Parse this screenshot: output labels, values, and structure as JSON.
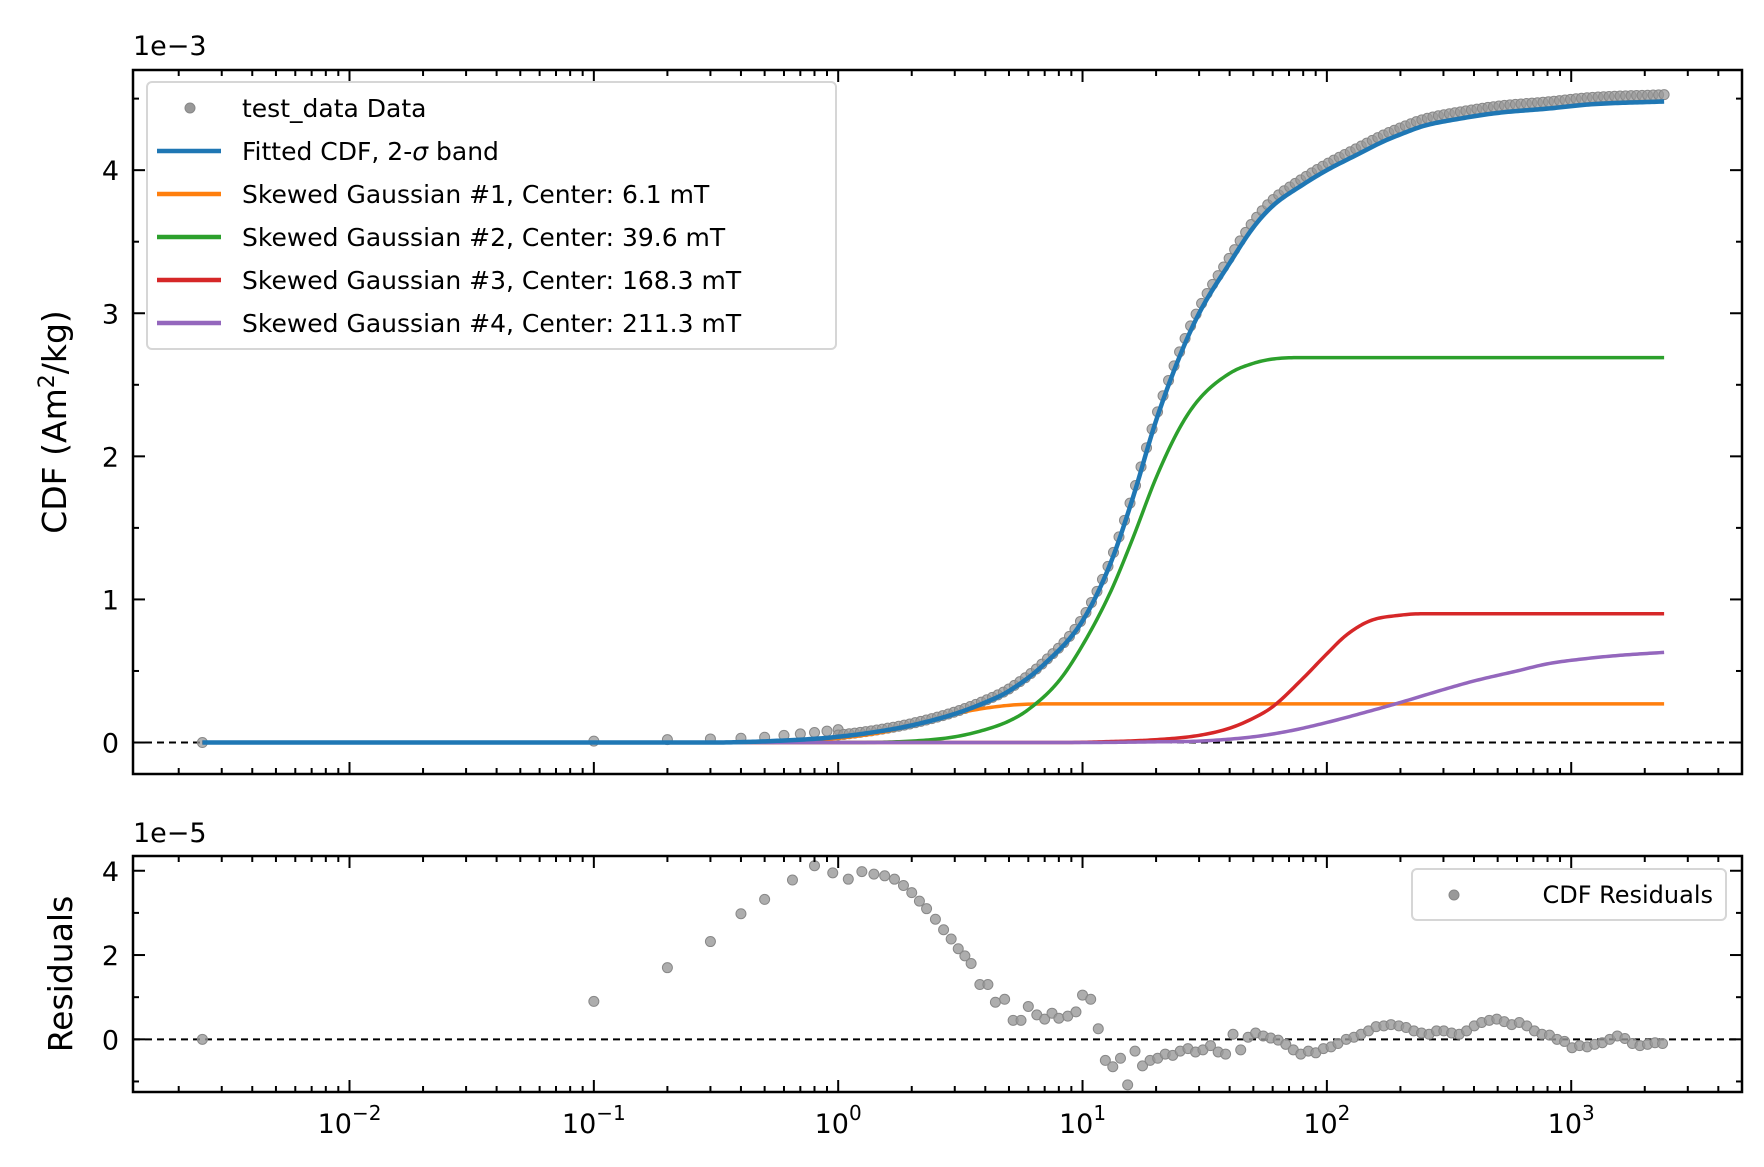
{
  "chart_data": [
    {
      "type": "line",
      "name": "cdf-panel",
      "x_scale": "log",
      "xlim": [
        0.0013,
        5000
      ],
      "ylim": [
        -0.00022,
        0.0047
      ],
      "ylabel_text": "CDF (Am",
      "ylabel_sup": "2",
      "ylabel_tail": "/kg)",
      "offset_text": "1e−3",
      "yticks": [
        {
          "value": 0,
          "label": "0"
        },
        {
          "value": 0.001,
          "label": "1"
        },
        {
          "value": 0.002,
          "label": "2"
        },
        {
          "value": 0.003,
          "label": "3"
        },
        {
          "value": 0.004,
          "label": "4"
        }
      ],
      "legend": {
        "position": "upper-left",
        "entries": [
          {
            "kind": "marker",
            "label": "test_data Data",
            "color": "#999999"
          },
          {
            "kind": "line",
            "label_pre": "Fitted CDF, 2-",
            "label_sigma": "σ",
            "label_post": " band",
            "color": "#1f77b4"
          },
          {
            "kind": "line",
            "label": "Skewed Gaussian #1, Center: 6.1 mT",
            "color": "#ff7f0e"
          },
          {
            "kind": "line",
            "label": "Skewed Gaussian #2, Center: 39.6 mT",
            "color": "#2ca02c"
          },
          {
            "kind": "line",
            "label": "Skewed Gaussian #3, Center: 168.3 mT",
            "color": "#d62728"
          },
          {
            "kind": "line",
            "label": "Skewed Gaussian #4, Center: 211.3 mT",
            "color": "#9467bd"
          }
        ]
      },
      "data": {
        "name": "test_data Data",
        "color": "#999999",
        "x": [
          0.0025,
          0.1,
          0.2,
          0.3,
          0.4,
          0.5,
          0.6,
          0.7,
          0.8,
          0.9,
          1.0,
          2.5,
          2400
        ],
        "y": [
          0.0,
          1e-05,
          2e-05,
          2.5e-05,
          3e-05,
          3.7e-05,
          5e-05,
          6e-05,
          7e-05,
          8e-05,
          9e-05,
          0.0002,
          0.0045
        ]
      },
      "series": [
        {
          "name": "Fitted CDF, 2-σ band",
          "color": "#1f77b4",
          "width": 4.5,
          "x": [
            0.0025,
            0.3,
            0.7,
            1.0,
            1.5,
            2.0,
            3.0,
            4.0,
            5.0,
            7.0,
            10,
            13,
            16,
            20,
            25,
            30,
            40,
            50,
            60,
            80,
            100,
            130,
            170,
            200,
            250,
            350,
            500,
            800,
            1200,
            2400
          ],
          "y": [
            0.0,
            0.0,
            2e-05,
            4e-05,
            8e-05,
            0.00012,
            0.0002,
            0.00028,
            0.00036,
            0.00055,
            0.00085,
            0.00125,
            0.0017,
            0.00225,
            0.0027,
            0.003,
            0.00335,
            0.0036,
            0.00375,
            0.0039,
            0.004,
            0.0041,
            0.0042,
            0.00425,
            0.00431,
            0.00436,
            0.0044,
            0.00443,
            0.00446,
            0.00448
          ]
        },
        {
          "name": "Skewed Gaussian #1, Center: 6.1 mT",
          "color": "#ff7f0e",
          "width": 3.5,
          "x": [
            0.0025,
            0.5,
            1.0,
            1.5,
            2.0,
            2.5,
            3.0,
            4.0,
            5.0,
            6.0,
            8.0,
            10,
            15,
            2400
          ],
          "y": [
            0.0,
            0.0,
            3e-05,
            7e-05,
            0.00012,
            0.00016,
            0.0002,
            0.00024,
            0.00026,
            0.000268,
            0.00027,
            0.00027,
            0.00027,
            0.00027
          ]
        },
        {
          "name": "Skewed Gaussian #2, Center: 39.6 mT",
          "color": "#2ca02c",
          "width": 3.5,
          "x": [
            0.0025,
            1.0,
            2.0,
            3.0,
            4.0,
            5.0,
            6.0,
            8.0,
            10,
            13,
            16,
            20,
            25,
            30,
            40,
            50,
            60,
            80,
            100,
            150,
            2400
          ],
          "y": [
            0.0,
            0.0,
            1e-05,
            4e-05,
            9e-05,
            0.00015,
            0.00023,
            0.00043,
            0.00068,
            0.00105,
            0.00142,
            0.00185,
            0.0022,
            0.0024,
            0.00258,
            0.00265,
            0.00268,
            0.00269,
            0.00269,
            0.00269,
            0.00269
          ]
        },
        {
          "name": "Skewed Gaussian #3, Center: 168.3 mT",
          "color": "#d62728",
          "width": 3.5,
          "x": [
            0.0025,
            8,
            12,
            20,
            30,
            40,
            50,
            60,
            80,
            100,
            120,
            150,
            200,
            250,
            300,
            2400
          ],
          "y": [
            0.0,
            0.0,
            5e-06,
            2e-05,
            5e-05,
            0.0001,
            0.00017,
            0.00025,
            0.00045,
            0.00062,
            0.00075,
            0.00085,
            0.00089,
            0.0009,
            0.0009,
            0.0009
          ]
        },
        {
          "name": "Skewed Gaussian #4, Center: 211.3 mT",
          "color": "#9467bd",
          "width": 3.5,
          "x": [
            0.0025,
            10,
            20,
            30,
            50,
            70,
            100,
            150,
            200,
            300,
            400,
            600,
            800,
            1200,
            1600,
            2400
          ],
          "y": [
            0.0,
            0.0,
            5e-06,
            1e-05,
            4e-05,
            8e-05,
            0.00014,
            0.00022,
            0.00028,
            0.00037,
            0.00043,
            0.0005,
            0.00055,
            0.00059,
            0.00061,
            0.00063
          ]
        }
      ],
      "zero_line": true
    },
    {
      "type": "scatter",
      "name": "residual-panel",
      "x_scale": "log",
      "xlim": [
        0.0013,
        5000
      ],
      "ylim": [
        -1.25e-05,
        4.35e-05
      ],
      "ylabel": "Residuals",
      "offset_text": "1e−5",
      "yticks": [
        {
          "value": 0,
          "label": "0"
        },
        {
          "value": 2e-05,
          "label": "2"
        },
        {
          "value": 4e-05,
          "label": "4"
        }
      ],
      "xticks": [
        {
          "value": 0.01,
          "base": "10",
          "exp": "−2"
        },
        {
          "value": 0.1,
          "base": "10",
          "exp": "−1"
        },
        {
          "value": 1,
          "base": "10",
          "exp": "0"
        },
        {
          "value": 10,
          "base": "10",
          "exp": "1"
        },
        {
          "value": 100,
          "base": "10",
          "exp": "2"
        },
        {
          "value": 1000,
          "base": "10",
          "exp": "3"
        }
      ],
      "legend": {
        "position": "upper-right",
        "entries": [
          {
            "kind": "marker",
            "label": "CDF Residuals",
            "color": "#999999"
          }
        ]
      },
      "points": {
        "name": "CDF Residuals",
        "color": "#999999",
        "x": [
          0.0025,
          0.1,
          0.2,
          0.3,
          0.4,
          0.5,
          0.65,
          0.8,
          0.95,
          1.1,
          1.25,
          1.4,
          1.55,
          1.7,
          1.85,
          2.0,
          2.15,
          2.3,
          2.5,
          2.7,
          2.9,
          3.1,
          3.3,
          3.5,
          3.8,
          4.1,
          4.4,
          4.8,
          5.2,
          5.6,
          6.0,
          6.5,
          7.0,
          7.5,
          8.0,
          8.7,
          9.4,
          10.0,
          10.8,
          11.6,
          12.4,
          13.3,
          14.3,
          15.3,
          16.4,
          17.6,
          18.9,
          20.3,
          21.8,
          23.4,
          25.1,
          27.0,
          29.0,
          31.1,
          33.4,
          35.9,
          38.5,
          41.3,
          44.4,
          47.6,
          51.1,
          54.9,
          58.9,
          63.2,
          67.9,
          72.9,
          78.2,
          84.0,
          90.1,
          96.8,
          104,
          111,
          120,
          129,
          138,
          148,
          159,
          171,
          183,
          197,
          211,
          227,
          244,
          262,
          281,
          301,
          324,
          348,
          373,
          401,
          430,
          462,
          496,
          532,
          571,
          613,
          658,
          707,
          759,
          815,
          875,
          939,
          1008,
          1082,
          1162,
          1248,
          1340,
          1438,
          1544,
          1658,
          1780,
          1911,
          2052,
          2203,
          2365
        ],
        "y": [
          0.0,
          9e-06,
          1.7e-05,
          2.32e-05,
          2.98e-05,
          3.32e-05,
          3.78e-05,
          4.12e-05,
          3.95e-05,
          3.8e-05,
          3.98e-05,
          3.92e-05,
          3.88e-05,
          3.8e-05,
          3.65e-05,
          3.48e-05,
          3.28e-05,
          3.1e-05,
          2.85e-05,
          2.6e-05,
          2.38e-05,
          2.15e-05,
          1.98e-05,
          1.8e-05,
          1.3e-05,
          1.3e-05,
          8.8e-06,
          9.5e-06,
          4.5e-06,
          4.5e-06,
          7.8e-06,
          5.8e-06,
          4.8e-06,
          6.2e-06,
          5e-06,
          5.5e-06,
          6.5e-06,
          1.05e-05,
          9.5e-06,
          2.5e-06,
          -5e-06,
          -6.5e-06,
          -4.5e-06,
          -1.08e-05,
          -2.8e-06,
          -6.3e-06,
          -5e-06,
          -4.5e-06,
          -3.5e-06,
          -3.8e-06,
          -2.8e-06,
          -2.2e-06,
          -3e-06,
          -2.5e-06,
          -1.5e-06,
          -3e-06,
          -3.5e-06,
          1.2e-06,
          -2.5e-06,
          5e-07,
          1.5e-06,
          8e-07,
          3e-07,
          -2e-07,
          -1.2e-06,
          -2.5e-06,
          -3.5e-06,
          -2.8e-06,
          -3.2e-06,
          -2.2e-06,
          -1.8e-06,
          -1e-06,
          0.0,
          5e-07,
          1.2e-06,
          2e-06,
          3e-06,
          3.2e-06,
          3.5e-06,
          3.2e-06,
          2.8e-06,
          2e-06,
          1.5e-06,
          1.2e-06,
          2e-06,
          2e-06,
          1.5e-06,
          1.2e-06,
          2e-06,
          3.2e-06,
          4e-06,
          4.5e-06,
          4.8e-06,
          4.2e-06,
          3.5e-06,
          4e-06,
          3.2e-06,
          2e-06,
          1.2e-06,
          1e-06,
          0.0,
          -5e-07,
          -2e-06,
          -1.5e-06,
          -1.8e-06,
          -1.2e-06,
          -8e-07,
          0.0,
          8e-07,
          2e-07,
          -1e-06,
          -1.5e-06,
          -1.2e-06,
          -8e-07,
          -1e-06
        ]
      },
      "zero_line": true
    }
  ]
}
